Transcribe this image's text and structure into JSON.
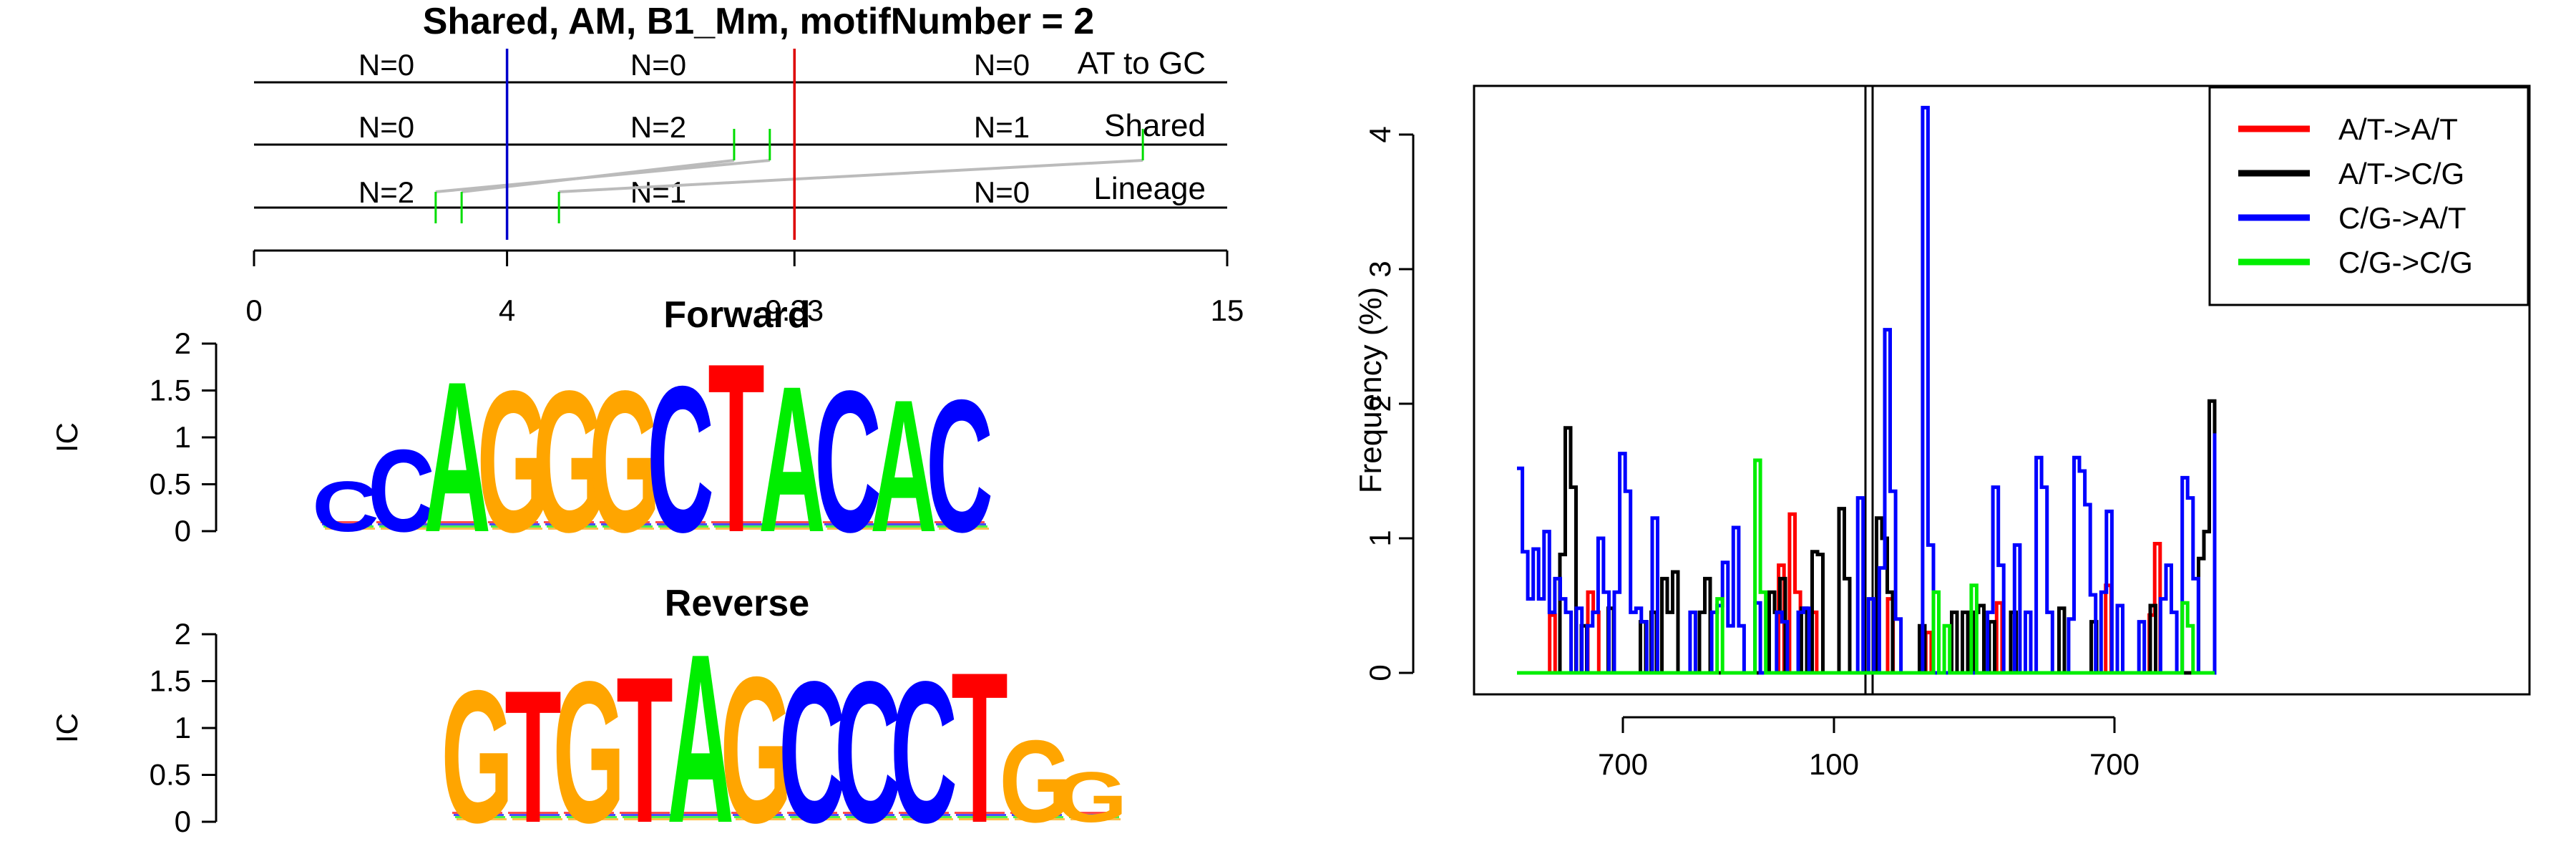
{
  "chart_data": [
    {
      "type": "diagram",
      "title": "Shared, AM, B1_Mm, motifNumber = 2",
      "track_labels": [
        "AT to GC",
        "Shared",
        "Lineage"
      ],
      "track_counts": [
        [
          "N=0",
          "N=0",
          "N=0"
        ],
        [
          "N=0",
          "N=2",
          "N=1"
        ],
        [
          "N=2",
          "N=1",
          "N=0"
        ]
      ],
      "axis": {
        "min": 0,
        "max": 15,
        "ticks": [
          "0",
          "4",
          "9.33",
          "15"
        ]
      },
      "boundaries": [
        {
          "value": 3.9,
          "color": "#0000cc"
        },
        {
          "value": 8.33,
          "color": "#dd0000"
        }
      ],
      "lineage_sites": [
        2.8,
        3.2,
        4.7
      ],
      "shared_sites": [
        7.4,
        7.95,
        13.7
      ],
      "links": [
        [
          2.8,
          7.95
        ],
        [
          3.2,
          7.4
        ],
        [
          4.7,
          13.7
        ]
      ]
    },
    {
      "type": "sequence-logo",
      "title": "Forward",
      "ylabel": "IC",
      "ylim": [
        0,
        2
      ],
      "yticks": [
        "0",
        "0.5",
        "1",
        "1.5",
        "2"
      ],
      "letters": [
        {
          "base": "C",
          "ic": 0.55,
          "color": "#0000ff"
        },
        {
          "base": "C",
          "ic": 0.9,
          "color": "#0000ff"
        },
        {
          "base": "A",
          "ic": 1.65,
          "color": "#00ee00"
        },
        {
          "base": "G",
          "ic": 1.55,
          "color": "#ffa500"
        },
        {
          "base": "G",
          "ic": 1.55,
          "color": "#ffa500"
        },
        {
          "base": "G",
          "ic": 1.55,
          "color": "#ffa500"
        },
        {
          "base": "C",
          "ic": 1.6,
          "color": "#0000ff"
        },
        {
          "base": "T",
          "ic": 1.85,
          "color": "#ff0000"
        },
        {
          "base": "A",
          "ic": 1.6,
          "color": "#00ee00"
        },
        {
          "base": "C",
          "ic": 1.55,
          "color": "#0000ff"
        },
        {
          "base": "A",
          "ic": 1.45,
          "color": "#00ee00"
        },
        {
          "base": "C",
          "ic": 1.45,
          "color": "#0000ff"
        }
      ]
    },
    {
      "type": "sequence-logo",
      "title": "Reverse",
      "ylabel": "IC",
      "ylim": [
        0,
        2
      ],
      "yticks": [
        "0",
        "0.5",
        "1",
        "1.5",
        "2"
      ],
      "letters": [
        {
          "base": "G",
          "ic": 1.45,
          "color": "#ffa500"
        },
        {
          "base": "T",
          "ic": 1.45,
          "color": "#ff0000"
        },
        {
          "base": "G",
          "ic": 1.55,
          "color": "#ffa500"
        },
        {
          "base": "T",
          "ic": 1.6,
          "color": "#ff0000"
        },
        {
          "base": "A",
          "ic": 1.85,
          "color": "#00ee00"
        },
        {
          "base": "G",
          "ic": 1.6,
          "color": "#ffa500"
        },
        {
          "base": "C",
          "ic": 1.55,
          "color": "#0000ff"
        },
        {
          "base": "C",
          "ic": 1.55,
          "color": "#0000ff"
        },
        {
          "base": "C",
          "ic": 1.55,
          "color": "#0000ff"
        },
        {
          "base": "T",
          "ic": 1.65,
          "color": "#ff0000"
        },
        {
          "base": "G",
          "ic": 0.9,
          "color": "#ffa500"
        },
        {
          "base": "G",
          "ic": 0.55,
          "color": "#ffa500"
        }
      ]
    },
    {
      "type": "line",
      "title": "",
      "ylabel": "Frequency (%)",
      "xlabel": "",
      "ylim": [
        0,
        4.25
      ],
      "yticks": [
        "0",
        "1",
        "2",
        "3",
        "4"
      ],
      "xticks": [
        "700",
        "100",
        "700"
      ],
      "center_line_color": "#000000",
      "legend_position": "top-right",
      "series": [
        {
          "name": "A/T->A/T",
          "color": "#ff0000",
          "values": [
            0,
            0,
            0,
            0,
            0,
            0,
            0.43,
            0,
            0,
            0,
            0,
            0,
            0,
            0.6,
            0.45,
            0,
            0,
            0,
            0,
            0,
            0,
            0,
            0,
            0,
            0,
            0,
            0,
            0,
            0,
            0,
            0,
            0,
            0,
            0,
            0,
            0,
            0,
            0,
            0,
            0,
            0,
            0,
            0,
            0,
            0,
            0,
            0,
            0,
            0.8,
            0,
            1.18,
            0.6,
            0,
            0,
            0.45,
            0,
            0,
            0,
            0,
            0,
            0,
            0,
            0,
            0,
            0,
            0,
            0,
            0,
            0.55,
            0,
            0,
            0,
            0,
            0,
            0,
            0.3,
            0,
            0,
            0,
            0,
            0,
            0,
            0,
            0,
            0,
            0,
            0,
            0,
            0.52,
            0,
            0,
            0,
            0,
            0,
            0,
            0,
            0,
            0,
            0,
            0,
            0,
            0,
            0,
            0,
            0,
            0,
            0,
            0,
            0.65,
            0,
            0,
            0,
            0,
            0,
            0,
            0,
            0.43,
            0.96,
            0,
            0,
            0,
            0,
            0,
            0,
            0,
            0,
            0,
            0,
            0
          ]
        },
        {
          "name": "A/T->C/G",
          "color": "#000000",
          "values": [
            0,
            0,
            0,
            0,
            0,
            0,
            0,
            0,
            0.88,
            1.82,
            1.38,
            0,
            0.35,
            0,
            0,
            0,
            0,
            0.48,
            0,
            0,
            0,
            0,
            0,
            0.38,
            0,
            0.45,
            0,
            0.7,
            0.45,
            0.75,
            0,
            0,
            0,
            0,
            0.45,
            0.7,
            0,
            0,
            0,
            0,
            0,
            0,
            0,
            0,
            0,
            0,
            0,
            0.6,
            0.45,
            0.7,
            0,
            0,
            0,
            0.48,
            0,
            0.9,
            0.88,
            0,
            0,
            0,
            1.22,
            0.7,
            0,
            0,
            0,
            0,
            0,
            1.15,
            1.0,
            0.6,
            0,
            0,
            0,
            0,
            0,
            0.35,
            0,
            0,
            0,
            0,
            0,
            0.45,
            0,
            0.45,
            0,
            0.45,
            0.5,
            0,
            0.38,
            0,
            0,
            0,
            0.45,
            0,
            0,
            0,
            0,
            0,
            0,
            0,
            0,
            0.48,
            0,
            0,
            0,
            0,
            0,
            0.38,
            0,
            0,
            0,
            0,
            0,
            0,
            0,
            0,
            0,
            0,
            0.5,
            0,
            0,
            0,
            0,
            0,
            0,
            0,
            0,
            0.85,
            1.05,
            2.02,
            0
          ]
        },
        {
          "name": "C/G->A/T",
          "color": "#0000ff",
          "values": [
            1.52,
            0.9,
            0.55,
            0.92,
            0.55,
            1.05,
            0.45,
            0.7,
            0.55,
            0.45,
            0,
            0.48,
            0,
            0.35,
            0.45,
            1.0,
            0.6,
            0,
            0.6,
            1.63,
            1.35,
            0.45,
            0.48,
            0.38,
            0,
            1.15,
            0,
            0,
            0,
            0,
            0,
            0,
            0.45,
            0,
            0,
            0,
            0.45,
            0.5,
            0.82,
            0.35,
            1.08,
            0.35,
            0,
            0,
            0.52,
            0,
            0,
            0,
            0.45,
            0.38,
            0,
            0,
            0.45,
            0.48,
            0,
            0,
            0,
            0,
            0,
            0,
            0,
            0,
            0,
            1.3,
            0,
            0.55,
            0,
            0.78,
            2.55,
            1.35,
            0.4,
            0,
            0,
            0,
            0,
            4.2,
            0.95,
            0,
            0,
            0,
            0,
            0,
            0,
            0,
            0,
            0,
            0,
            0.45,
            1.38,
            0.8,
            0,
            0,
            0.95,
            0,
            0.45,
            0,
            1.6,
            1.38,
            0.45,
            0,
            0,
            0,
            0.4,
            1.6,
            1.5,
            1.25,
            0.58,
            0,
            0.6,
            1.2,
            0,
            0.5,
            0,
            0,
            0,
            0.38,
            0,
            0,
            0,
            0.55,
            0.8,
            0.45,
            0,
            1.45,
            1.3,
            0.7,
            0,
            0,
            0,
            1.78
          ]
        },
        {
          "name": "C/G->C/G",
          "color": "#00ee00",
          "values": [
            0,
            0,
            0,
            0,
            0,
            0,
            0,
            0,
            0,
            0,
            0,
            0,
            0,
            0,
            0,
            0,
            0,
            0,
            0,
            0,
            0,
            0,
            0,
            0,
            0,
            0,
            0,
            0,
            0,
            0,
            0,
            0,
            0,
            0,
            0,
            0,
            0,
            0.55,
            0,
            0,
            0,
            0,
            0,
            0,
            1.58,
            0.6,
            0,
            0,
            0,
            0,
            0,
            0,
            0,
            0,
            0,
            0,
            0,
            0,
            0,
            0,
            0,
            0,
            0,
            0,
            0,
            0,
            0,
            0,
            0,
            0,
            0,
            0,
            0,
            0,
            0,
            0,
            0,
            0.6,
            0,
            0.35,
            0,
            0,
            0,
            0,
            0.65,
            0,
            0,
            0,
            0,
            0,
            0,
            0,
            0,
            0,
            0,
            0,
            0,
            0,
            0,
            0,
            0,
            0,
            0,
            0,
            0,
            0,
            0,
            0,
            0,
            0,
            0,
            0,
            0,
            0,
            0,
            0,
            0,
            0,
            0,
            0,
            0,
            0,
            0,
            0.52,
            0.35,
            0,
            0,
            0,
            0,
            0
          ]
        }
      ]
    }
  ]
}
